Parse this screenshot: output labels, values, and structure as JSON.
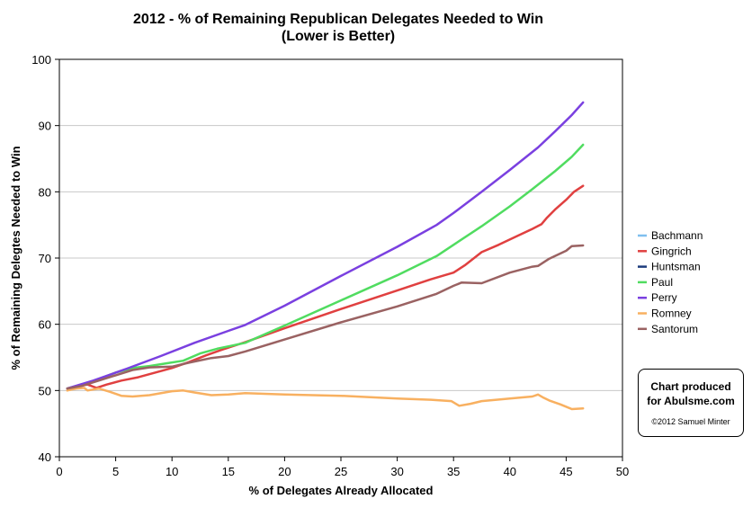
{
  "chart_data": {
    "type": "line",
    "title_line1": "2012 - % of Remaining Republican Delegates Needed to Win",
    "title_line2": "(Lower is Better)",
    "xlabel": "% of Delegates Already Allocated",
    "ylabel": "% of Remaining Delegtes Needed to Win",
    "xlim": [
      0,
      50
    ],
    "ylim": [
      40,
      100
    ],
    "x_ticks": [
      "0",
      "5",
      "10",
      "15",
      "20",
      "25",
      "30",
      "35",
      "40",
      "45",
      "50"
    ],
    "y_ticks": [
      "40",
      "50",
      "60",
      "70",
      "80",
      "90",
      "100"
    ],
    "grid": "horizontal",
    "legend_position": "right",
    "series": [
      {
        "name": "Bachmann",
        "color": "#7fbfef",
        "points": []
      },
      {
        "name": "Gingrich",
        "color": "#e04040",
        "points": [
          [
            0.7,
            50.3
          ],
          [
            1.5,
            50.6
          ],
          [
            2.5,
            50.9
          ],
          [
            3.3,
            50.4
          ],
          [
            4.2,
            50.9
          ],
          [
            5.5,
            51.5
          ],
          [
            7,
            52.0
          ],
          [
            8.5,
            52.7
          ],
          [
            10,
            53.4
          ],
          [
            11.5,
            54.3
          ],
          [
            13,
            55.3
          ],
          [
            14.5,
            56.2
          ],
          [
            16.5,
            57.3
          ],
          [
            20,
            59.4
          ],
          [
            25,
            62.3
          ],
          [
            30,
            65.1
          ],
          [
            33,
            66.8
          ],
          [
            35,
            67.8
          ],
          [
            36,
            68.9
          ],
          [
            37.5,
            70.9
          ],
          [
            39,
            72.0
          ],
          [
            40.5,
            73.2
          ],
          [
            42,
            74.4
          ],
          [
            42.8,
            75.1
          ],
          [
            43.3,
            76.1
          ],
          [
            44,
            77.3
          ],
          [
            45,
            78.8
          ],
          [
            45.7,
            80.0
          ],
          [
            46.5,
            80.9
          ]
        ]
      },
      {
        "name": "Huntsman",
        "color": "#1c3c7c",
        "points": []
      },
      {
        "name": "Paul",
        "color": "#50dc60",
        "points": [
          [
            0.7,
            50.3
          ],
          [
            2,
            50.9
          ],
          [
            3.3,
            51.6
          ],
          [
            5,
            52.7
          ],
          [
            6.5,
            53.4
          ],
          [
            8,
            53.7
          ],
          [
            9.5,
            54.1
          ],
          [
            11,
            54.5
          ],
          [
            12.5,
            55.6
          ],
          [
            14,
            56.3
          ],
          [
            16.5,
            57.2
          ],
          [
            20,
            59.8
          ],
          [
            25,
            63.6
          ],
          [
            30,
            67.4
          ],
          [
            33.5,
            70.3
          ],
          [
            35,
            72.0
          ],
          [
            37.5,
            74.8
          ],
          [
            40,
            77.8
          ],
          [
            42,
            80.4
          ],
          [
            44,
            83.1
          ],
          [
            45.5,
            85.3
          ],
          [
            46.5,
            87.1
          ]
        ]
      },
      {
        "name": "Perry",
        "color": "#7a40e0",
        "points": [
          [
            0.7,
            50.3
          ],
          [
            3,
            51.5
          ],
          [
            6,
            53.3
          ],
          [
            9,
            55.2
          ],
          [
            12,
            57.2
          ],
          [
            15,
            59.0
          ],
          [
            16.5,
            59.9
          ],
          [
            20,
            62.8
          ],
          [
            25,
            67.3
          ],
          [
            30,
            71.7
          ],
          [
            33.5,
            75.0
          ],
          [
            35,
            76.8
          ],
          [
            37.5,
            80.0
          ],
          [
            40,
            83.3
          ],
          [
            42.5,
            86.7
          ],
          [
            44,
            89.1
          ],
          [
            45.5,
            91.6
          ],
          [
            46.5,
            93.5
          ]
        ]
      },
      {
        "name": "Romney",
        "color": "#f8b060",
        "points": [
          [
            0.7,
            50.0
          ],
          [
            1.5,
            50.3
          ],
          [
            2.2,
            50.4
          ],
          [
            2.5,
            50.0
          ],
          [
            3.5,
            50.3
          ],
          [
            4.5,
            49.8
          ],
          [
            5.5,
            49.2
          ],
          [
            6.5,
            49.1
          ],
          [
            8,
            49.3
          ],
          [
            10,
            49.9
          ],
          [
            11,
            50.0
          ],
          [
            12,
            49.7
          ],
          [
            13.5,
            49.3
          ],
          [
            15,
            49.4
          ],
          [
            16.5,
            49.6
          ],
          [
            20,
            49.4
          ],
          [
            25,
            49.2
          ],
          [
            30,
            48.8
          ],
          [
            33,
            48.6
          ],
          [
            34.8,
            48.4
          ],
          [
            35.5,
            47.7
          ],
          [
            36.5,
            48.0
          ],
          [
            37.5,
            48.4
          ],
          [
            40,
            48.8
          ],
          [
            42,
            49.1
          ],
          [
            42.5,
            49.4
          ],
          [
            43,
            48.9
          ],
          [
            43.5,
            48.5
          ],
          [
            44.5,
            47.9
          ],
          [
            45.5,
            47.2
          ],
          [
            46.5,
            47.3
          ]
        ]
      },
      {
        "name": "Santorum",
        "color": "#9a6262",
        "points": [
          [
            0.7,
            50.3
          ],
          [
            2,
            50.7
          ],
          [
            3.3,
            51.4
          ],
          [
            5,
            52.3
          ],
          [
            6.5,
            53.1
          ],
          [
            8,
            53.5
          ],
          [
            10,
            53.6
          ],
          [
            11.5,
            54.2
          ],
          [
            13.5,
            54.9
          ],
          [
            15,
            55.2
          ],
          [
            16.5,
            55.9
          ],
          [
            20,
            57.7
          ],
          [
            25,
            60.3
          ],
          [
            30,
            62.7
          ],
          [
            33.5,
            64.6
          ],
          [
            35,
            65.8
          ],
          [
            35.7,
            66.3
          ],
          [
            37.5,
            66.2
          ],
          [
            40,
            67.8
          ],
          [
            42,
            68.7
          ],
          [
            42.5,
            68.8
          ],
          [
            43.5,
            69.9
          ],
          [
            45,
            71.1
          ],
          [
            45.5,
            71.8
          ],
          [
            46.5,
            71.9
          ]
        ]
      }
    ]
  },
  "credit": {
    "line1": "Chart produced",
    "line2": "for Abulsme.com",
    "line3": "©2012 Samuel Minter"
  }
}
